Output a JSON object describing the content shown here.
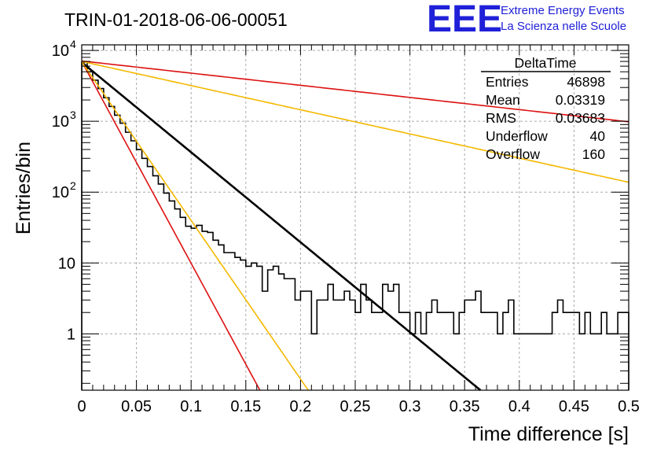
{
  "chart_data": {
    "type": "histogram",
    "title": "TRIN-01-2018-06-06-00051",
    "xlabel": "Time difference [s]",
    "ylabel": "Entries/bin",
    "xlim": [
      0,
      0.5
    ],
    "ylim": [
      0.16,
      12000
    ],
    "y_scale": "log",
    "grid": true,
    "x_ticks": [
      {
        "value": 0,
        "label": "0"
      },
      {
        "value": 0.05,
        "label": "0.05"
      },
      {
        "value": 0.1,
        "label": "0.1"
      },
      {
        "value": 0.15,
        "label": "0.15"
      },
      {
        "value": 0.2,
        "label": "0.2"
      },
      {
        "value": 0.25,
        "label": "0.25"
      },
      {
        "value": 0.3,
        "label": "0.3"
      },
      {
        "value": 0.35,
        "label": "0.35"
      },
      {
        "value": 0.4,
        "label": "0.4"
      },
      {
        "value": 0.45,
        "label": "0.45"
      },
      {
        "value": 0.5,
        "label": "0.5"
      }
    ],
    "y_ticks": [
      {
        "value": 1,
        "label": "1"
      },
      {
        "value": 10,
        "label": "10"
      },
      {
        "value": 100,
        "label": "10",
        "exp": "2"
      },
      {
        "value": 1000,
        "label": "10",
        "exp": "3"
      },
      {
        "value": 10000,
        "label": "10",
        "exp": "4"
      }
    ],
    "histogram": {
      "name": "DeltaTime",
      "bin_width": 0.005,
      "x_start": 0,
      "values": [
        6800,
        5000,
        3800,
        2900,
        2150,
        1620,
        1220,
        940,
        700,
        530,
        400,
        300,
        230,
        170,
        130,
        97,
        75,
        58,
        44,
        33,
        31,
        34,
        28,
        27,
        21,
        18,
        14,
        14,
        12,
        11,
        9,
        10,
        9,
        4,
        8,
        9,
        7,
        6,
        6,
        3,
        4,
        4,
        1,
        3,
        3,
        5,
        3,
        3,
        4,
        3,
        2,
        5,
        3,
        2,
        2,
        5,
        4,
        5,
        2,
        2,
        1,
        2,
        1,
        2,
        3,
        2,
        2,
        2,
        1,
        2,
        3,
        3,
        4,
        2,
        2,
        2,
        1,
        2,
        3,
        1,
        1,
        1,
        1,
        1,
        1,
        1,
        2,
        3,
        2,
        2,
        2,
        1,
        2,
        1,
        1,
        2,
        1,
        1,
        2,
        2
      ],
      "color": "#000000"
    },
    "fits": [
      {
        "color": "#000000",
        "y0": 6800,
        "tau": 0.0342,
        "width": 2.6
      },
      {
        "color": "#dd1111",
        "y0": 7000,
        "tau": 0.01524,
        "width": 1.6
      },
      {
        "color": "#f5b800",
        "y0": 6900,
        "tau": 0.0194,
        "width": 1.6
      },
      {
        "color": "#dd1111",
        "y0": 7100,
        "tau": 0.2531,
        "width": 1.6
      },
      {
        "color": "#f5b800",
        "y0": 7000,
        "tau": 0.1273,
        "width": 1.6
      }
    ],
    "stats": {
      "title": "DeltaTime",
      "rows": [
        {
          "label": "Entries",
          "value": "46898"
        },
        {
          "label": "Mean",
          "value": "0.03319"
        },
        {
          "label": "RMS",
          "value": "0.03683"
        },
        {
          "label": "Underflow",
          "value": "40"
        },
        {
          "label": "Overflow",
          "value": "160"
        }
      ]
    }
  },
  "logo": {
    "text": "EEE",
    "line1": "Extreme Energy Events",
    "line2": "La Scienza nelle Scuole",
    "color": "#2020d8"
  }
}
